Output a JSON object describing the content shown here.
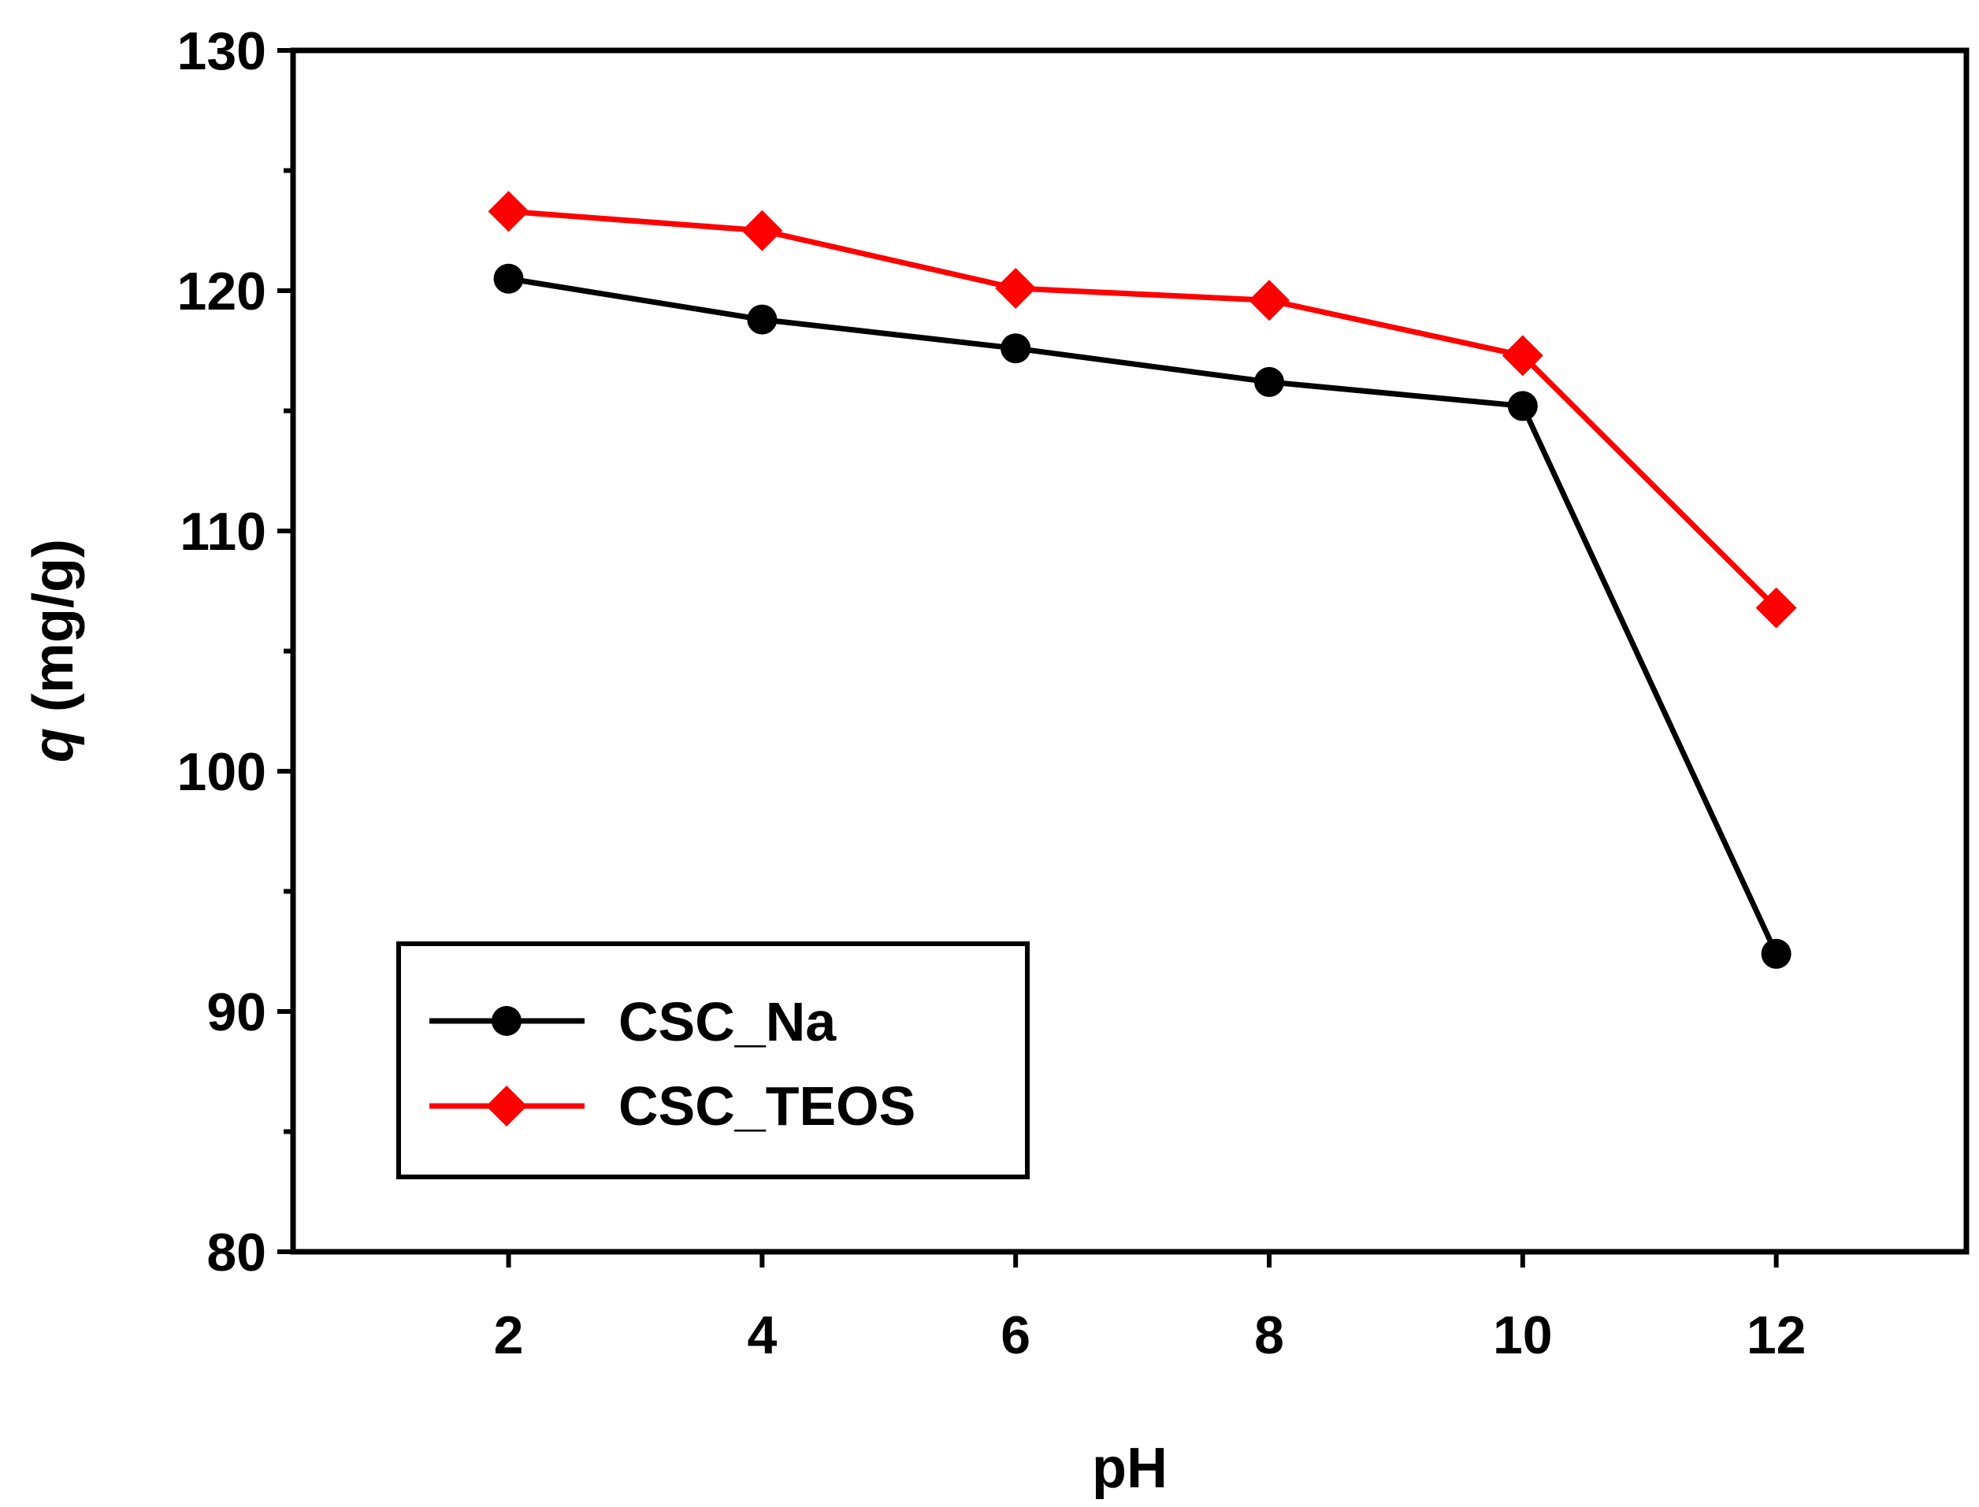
{
  "chart_data": {
    "type": "line",
    "title": "",
    "xlabel": "pH",
    "ylabel_symbol": "q",
    "ylabel_unit": "(mg/g)",
    "xlim": [
      0.3,
      13.5
    ],
    "ylim": [
      80,
      130
    ],
    "xticks": [
      2,
      4,
      6,
      8,
      10,
      12
    ],
    "yticks": [
      80,
      90,
      100,
      110,
      120,
      130
    ],
    "y_minor_ticks": [
      85,
      95,
      105,
      115,
      125
    ],
    "grid": false,
    "legend_position": "bottom-left",
    "x": [
      2,
      4,
      6,
      8,
      10,
      12
    ],
    "series": [
      {
        "name": "CSC_Na",
        "color": "#000000",
        "marker": "circle",
        "values": [
          120.5,
          118.8,
          117.6,
          116.2,
          115.2,
          92.4
        ]
      },
      {
        "name": "CSC_TEOS",
        "color": "#ff0000",
        "marker": "diamond",
        "values": [
          123.3,
          122.5,
          120.1,
          119.6,
          117.3,
          106.8
        ]
      }
    ]
  }
}
